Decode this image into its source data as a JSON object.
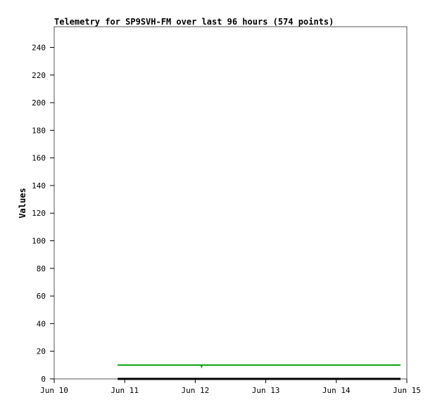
{
  "chart_data": {
    "type": "line",
    "title": "Telemetry for SP9SVH-FM over last 96 hours (574 points)",
    "xlabel": "",
    "ylabel": "Values",
    "xlim": [
      "Jun 10 00:00",
      "Jun 15 00:00"
    ],
    "ylim": [
      0,
      255
    ],
    "x_ticks": [
      "Jun 10",
      "Jun 11",
      "Jun 12",
      "Jun 13",
      "Jun 14",
      "Jun 15"
    ],
    "y_ticks": [
      0,
      20,
      40,
      60,
      80,
      100,
      120,
      140,
      160,
      180,
      200,
      220,
      240
    ],
    "grid": false,
    "series": [
      {
        "color": "#00a000",
        "points": [
          [
            "Jun 10 21:36",
            10
          ],
          [
            "Jun 12 02:00",
            10
          ],
          [
            "Jun 12 02:10",
            9
          ],
          [
            "Jun 12 02:20",
            10
          ],
          [
            "Jun 14 21:50",
            10
          ]
        ]
      },
      {
        "color": "#000000",
        "points": [
          [
            "Jun 10 21:36",
            0
          ],
          [
            "Jun 14 21:50",
            0
          ]
        ]
      }
    ]
  }
}
